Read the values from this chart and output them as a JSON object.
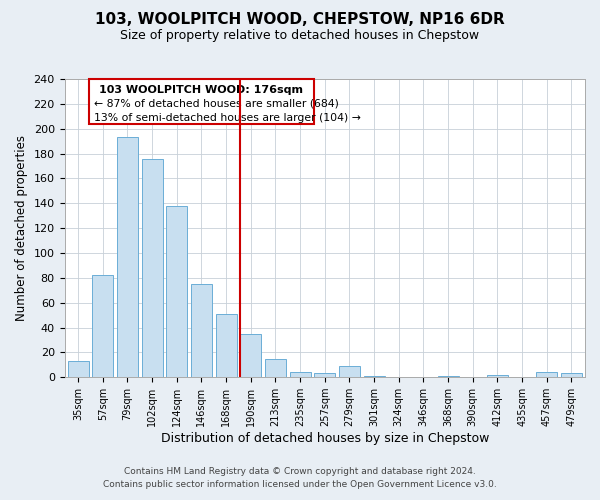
{
  "title": "103, WOOLPITCH WOOD, CHEPSTOW, NP16 6DR",
  "subtitle": "Size of property relative to detached houses in Chepstow",
  "xlabel": "Distribution of detached houses by size in Chepstow",
  "ylabel": "Number of detached properties",
  "bar_labels": [
    "35sqm",
    "57sqm",
    "79sqm",
    "102sqm",
    "124sqm",
    "146sqm",
    "168sqm",
    "190sqm",
    "213sqm",
    "235sqm",
    "257sqm",
    "279sqm",
    "301sqm",
    "324sqm",
    "346sqm",
    "368sqm",
    "390sqm",
    "412sqm",
    "435sqm",
    "457sqm",
    "479sqm"
  ],
  "bar_values": [
    13,
    82,
    193,
    176,
    138,
    75,
    51,
    35,
    15,
    4,
    3,
    9,
    1,
    0,
    0,
    1,
    0,
    2,
    0,
    4,
    3
  ],
  "bar_color": "#c8dff0",
  "bar_edge_color": "#6baed6",
  "ylim": [
    0,
    240
  ],
  "yticks": [
    0,
    20,
    40,
    60,
    80,
    100,
    120,
    140,
    160,
    180,
    200,
    220,
    240
  ],
  "vline_x": 7,
  "vline_color": "#cc0000",
  "annotation_line1": "103 WOOLPITCH WOOD: 176sqm",
  "annotation_line2": "← 87% of detached houses are smaller (684)",
  "annotation_line3": "13% of semi-detached houses are larger (104) →",
  "footer_line1": "Contains HM Land Registry data © Crown copyright and database right 2024.",
  "footer_line2": "Contains public sector information licensed under the Open Government Licence v3.0.",
  "bg_color": "#e8eef4",
  "plot_bg_color": "#ffffff",
  "grid_color": "#c8d0d8"
}
